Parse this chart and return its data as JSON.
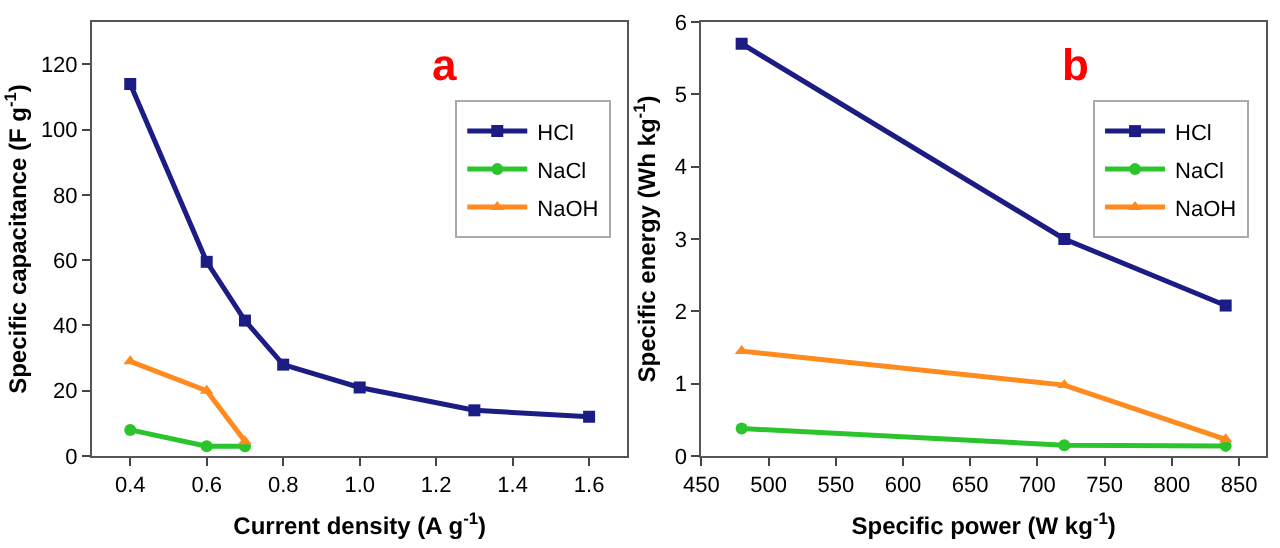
{
  "chart_data": [
    {
      "type": "line",
      "annotations": [
        "a"
      ],
      "xlabel": "Current density (A g$^{-1}$)",
      "ylabel": "Specific capacitance (F g$^{-1}$)",
      "xlim": [
        0.3,
        1.7
      ],
      "xticks": [
        {
          "value": 0.4,
          "label": "0.4"
        },
        {
          "value": 0.6,
          "label": "0.6"
        },
        {
          "value": 0.8,
          "label": "0.8"
        },
        {
          "value": 1.0,
          "label": "1.0"
        },
        {
          "value": 1.2,
          "label": "1.2"
        },
        {
          "value": 1.4,
          "label": "1.4"
        },
        {
          "value": 1.6,
          "label": "1.6"
        }
      ],
      "ylim": [
        0,
        133
      ],
      "yticks": [
        0,
        20,
        40,
        60,
        80,
        100,
        120
      ],
      "legend": "top right",
      "line_style": "solid",
      "series": [
        {
          "name": "HCl",
          "color": "#1c1c85",
          "marker": "square",
          "x": [
            0.4,
            0.6,
            0.7,
            0.8,
            1.0,
            1.3,
            1.6
          ],
          "values": [
            114,
            59.5,
            41.5,
            28,
            21,
            14,
            12
          ]
        },
        {
          "name": "NaCl",
          "color": "#2cc42c",
          "marker": "circle",
          "x": [
            0.4,
            0.6,
            0.7
          ],
          "values": [
            8,
            3,
            3
          ]
        },
        {
          "name": "NaOH",
          "color": "#ff8a1e",
          "marker": "triangle",
          "x": [
            0.4,
            0.6,
            0.7
          ],
          "values": [
            29,
            20,
            4.5
          ]
        }
      ]
    },
    {
      "type": "line",
      "annotations": [
        "b"
      ],
      "xlabel": "Specific power (W kg$^{-1}$)",
      "ylabel": "Specific energy (Wh kg$^{-1}$)",
      "xlim": [
        450,
        870
      ],
      "xticks": [
        450,
        500,
        550,
        600,
        650,
        700,
        750,
        800,
        850
      ],
      "ylim": [
        0,
        6
      ],
      "yticks": [
        0,
        1,
        2,
        3,
        4,
        5,
        6
      ],
      "legend": "top right",
      "line_style": "solid",
      "series": [
        {
          "name": "HCl",
          "color": "#1c1c85",
          "marker": "square",
          "x": [
            480,
            720,
            840
          ],
          "values": [
            5.7,
            3.0,
            2.08
          ]
        },
        {
          "name": "NaCl",
          "color": "#2cc42c",
          "marker": "circle",
          "x": [
            480,
            720,
            840
          ],
          "values": [
            0.38,
            0.15,
            0.14
          ]
        },
        {
          "name": "NaOH",
          "color": "#ff8a1e",
          "marker": "triangle",
          "x": [
            480,
            720,
            840
          ],
          "values": [
            1.45,
            0.98,
            0.23
          ]
        }
      ]
    }
  ]
}
